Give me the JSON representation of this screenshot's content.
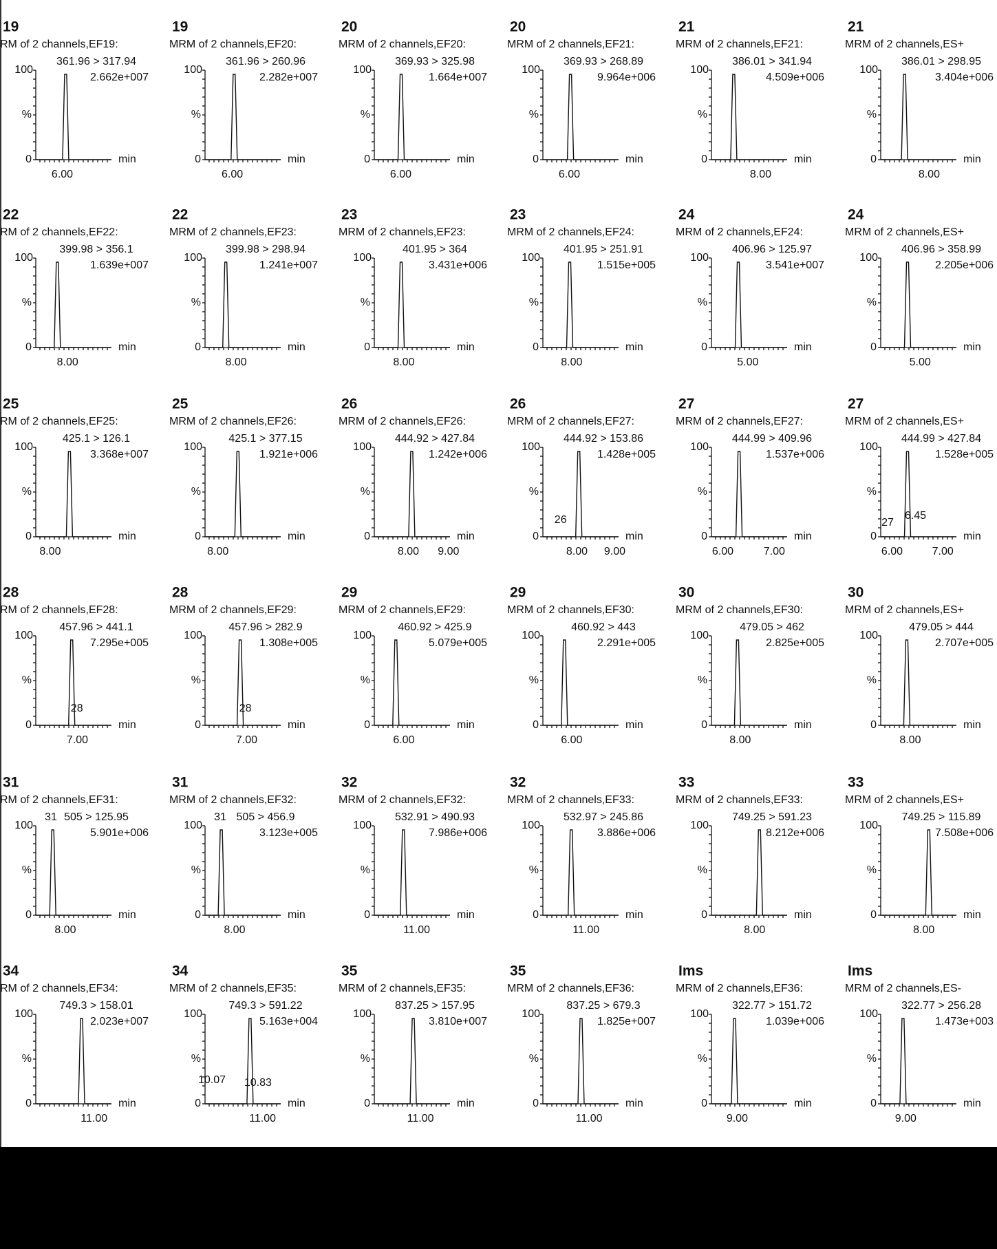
{
  "axis_labels": {
    "top": "100",
    "mid": "%",
    "zero": "0",
    "unit": "min"
  },
  "panels": [
    {
      "id": "19",
      "channel": "RM of 2 channels,EF19:",
      "transition": "361.96 > 317.94",
      "intensity": "2.662e+007",
      "xticks": [
        "6.00"
      ],
      "annotations": []
    },
    {
      "id": "19",
      "channel": "MRM of 2 channels,EF20:",
      "transition": "361.96 > 260.96",
      "intensity": "2.282e+007",
      "xticks": [
        "6.00"
      ],
      "annotations": []
    },
    {
      "id": "20",
      "channel": "MRM of 2 channels,EF20:",
      "transition": "369.93 > 325.98",
      "intensity": "1.664e+007",
      "xticks": [
        "6.00"
      ],
      "annotations": []
    },
    {
      "id": "20",
      "channel": "MRM of 2 channels,EF21:",
      "transition": "369.93 > 268.89",
      "intensity": "9.964e+006",
      "xticks": [
        "6.00"
      ],
      "annotations": []
    },
    {
      "id": "21",
      "channel": "MRM of 2 channels,EF21:",
      "transition": "386.01 > 341.94",
      "intensity": "4.509e+006",
      "xticks": [
        "8.00"
      ],
      "annotations": []
    },
    {
      "id": "21",
      "channel": "MRM of 2 channels,ES+",
      "transition": "386.01 > 298.95",
      "intensity": "3.404e+006",
      "xticks": [
        "8.00"
      ],
      "annotations": []
    },
    {
      "id": "22",
      "channel": "RM of 2 channels,EF22:",
      "transition": "399.98 > 356.1",
      "intensity": "1.639e+007",
      "xticks": [
        "8.00"
      ],
      "annotations": []
    },
    {
      "id": "22",
      "channel": "MRM of 2 channels,EF23:",
      "transition": "399.98 > 298.94",
      "intensity": "1.241e+007",
      "xticks": [
        "8.00"
      ],
      "annotations": []
    },
    {
      "id": "23",
      "channel": "MRM of 2 channels,EF23:",
      "transition": "401.95 > 364",
      "intensity": "3.431e+006",
      "xticks": [
        "8.00"
      ],
      "annotations": []
    },
    {
      "id": "23",
      "channel": "MRM of 2 channels,EF24:",
      "transition": "401.95 > 251.91",
      "intensity": "1.515e+005",
      "xticks": [
        "8.00"
      ],
      "annotations": []
    },
    {
      "id": "24",
      "channel": "MRM of 2 channels,EF24:",
      "transition": "406.96 > 125.97",
      "intensity": "3.541e+007",
      "xticks": [
        "5.00"
      ],
      "annotations": []
    },
    {
      "id": "24",
      "channel": "MRM of 2 channels,ES+",
      "transition": "406.96 > 358.99",
      "intensity": "2.205e+006",
      "xticks": [
        "5.00"
      ],
      "annotations": []
    },
    {
      "id": "25",
      "channel": "RM of 2 channels,EF25:",
      "transition": "425.1 > 126.1",
      "intensity": "3.368e+007",
      "xticks": [
        "8.00"
      ],
      "annotations": []
    },
    {
      "id": "25",
      "channel": "MRM of 2 channels,EF26:",
      "transition": "425.1 > 377.15",
      "intensity": "1.921e+006",
      "xticks": [
        "8.00"
      ],
      "annotations": []
    },
    {
      "id": "26",
      "channel": "MRM of 2 channels,EF26:",
      "transition": "444.92 > 427.84",
      "intensity": "1.242e+006",
      "xticks": [
        "8.00",
        "9.00"
      ],
      "annotations": []
    },
    {
      "id": "26",
      "channel": "MRM of 2 channels,EF27:",
      "transition": "444.92 > 153.86",
      "intensity": "1.428e+005",
      "xticks": [
        "8.00",
        "9.00"
      ],
      "annotations": [
        "26"
      ]
    },
    {
      "id": "27",
      "channel": "MRM of 2 channels,EF27:",
      "transition": "444.99 > 409.96",
      "intensity": "1.537e+006",
      "xticks": [
        "6.00",
        "7.00"
      ],
      "annotations": []
    },
    {
      "id": "27",
      "channel": "MRM of 2 channels,ES+",
      "transition": "444.99 > 427.84",
      "intensity": "1.528e+005",
      "xticks": [
        "6.00",
        "7.00"
      ],
      "annotations": [
        "27",
        "6.45"
      ]
    },
    {
      "id": "28",
      "channel": "RM of 2 channels,EF28:",
      "transition": "457.96 > 441.1",
      "intensity": "7.295e+005",
      "xticks": [
        "7.00"
      ],
      "annotations": [
        "28"
      ]
    },
    {
      "id": "28",
      "channel": "MRM of 2 channels,EF29:",
      "transition": "457.96 > 282.9",
      "intensity": "1.308e+005",
      "xticks": [
        "7.00"
      ],
      "annotations": [
        "28"
      ]
    },
    {
      "id": "29",
      "channel": "MRM of 2 channels,EF29:",
      "transition": "460.92 > 425.9",
      "intensity": "5.079e+005",
      "xticks": [
        "6.00"
      ],
      "annotations": []
    },
    {
      "id": "29",
      "channel": "MRM of 2 channels,EF30:",
      "transition": "460.92 > 443",
      "intensity": "2.291e+005",
      "xticks": [
        "6.00"
      ],
      "annotations": []
    },
    {
      "id": "30",
      "channel": "MRM of 2 channels,EF30:",
      "transition": "479.05 > 462",
      "intensity": "2.825e+005",
      "xticks": [
        "8.00"
      ],
      "annotations": []
    },
    {
      "id": "30",
      "channel": "MRM of 2 channels,ES+",
      "transition": "479.05 > 444",
      "intensity": "2.707e+005",
      "xticks": [
        "8.00"
      ],
      "annotations": []
    },
    {
      "id": "31",
      "channel": "RM of 2 channels,EF31:",
      "transition": "505 > 125.95",
      "intensity": "5.901e+006",
      "xticks": [
        "8.00"
      ],
      "annotations": [
        "31"
      ]
    },
    {
      "id": "31",
      "channel": "MRM of 2 channels,EF32:",
      "transition": "505 > 456.9",
      "intensity": "3.123e+005",
      "xticks": [
        "8.00"
      ],
      "annotations": [
        "31"
      ]
    },
    {
      "id": "32",
      "channel": "MRM of 2 channels,EF32:",
      "transition": "532.91 > 490.93",
      "intensity": "7.986e+006",
      "xticks": [
        "11.00"
      ],
      "annotations": []
    },
    {
      "id": "32",
      "channel": "MRM of 2 channels,EF33:",
      "transition": "532.97 > 245.86",
      "intensity": "3.886e+006",
      "xticks": [
        "11.00"
      ],
      "annotations": []
    },
    {
      "id": "33",
      "channel": "MRM of 2 channels,EF33:",
      "transition": "749.25 > 591.23",
      "intensity": "8.212e+006",
      "xticks": [
        "8.00"
      ],
      "annotations": []
    },
    {
      "id": "33",
      "channel": "MRM of 2 channels,ES+",
      "transition": "749.25 > 115.89",
      "intensity": "7.508e+006",
      "xticks": [
        "8.00"
      ],
      "annotations": []
    },
    {
      "id": "34",
      "channel": "RM of 2 channels,EF34:",
      "transition": "749.3 > 158.01",
      "intensity": "2.023e+007",
      "xticks": [
        "11.00"
      ],
      "annotations": []
    },
    {
      "id": "34",
      "channel": "MRM of 2 channels,EF35:",
      "transition": "749.3 > 591.22",
      "intensity": "5.163e+004",
      "xticks": [
        "11.00"
      ],
      "annotations": [
        "10.07",
        "10.83"
      ]
    },
    {
      "id": "35",
      "channel": "MRM of 2 channels,EF35:",
      "transition": "837.25 > 157.95",
      "intensity": "3.810e+007",
      "xticks": [
        "11.00"
      ],
      "annotations": []
    },
    {
      "id": "35",
      "channel": "MRM of 2 channels,EF36:",
      "transition": "837.25 > 679.3",
      "intensity": "1.825e+007",
      "xticks": [
        "11.00"
      ],
      "annotations": []
    },
    {
      "id": "Ims",
      "channel": "MRM of 2 channels,EF36:",
      "transition": "322.77 > 151.72",
      "intensity": "1.039e+006",
      "xticks": [
        "9.00"
      ],
      "annotations": []
    },
    {
      "id": "Ims",
      "channel": "MRM of 2 channels,ES-",
      "transition": "322.77 > 256.28",
      "intensity": "1.473e+003",
      "xticks": [
        "9.00"
      ],
      "annotations": []
    }
  ]
}
